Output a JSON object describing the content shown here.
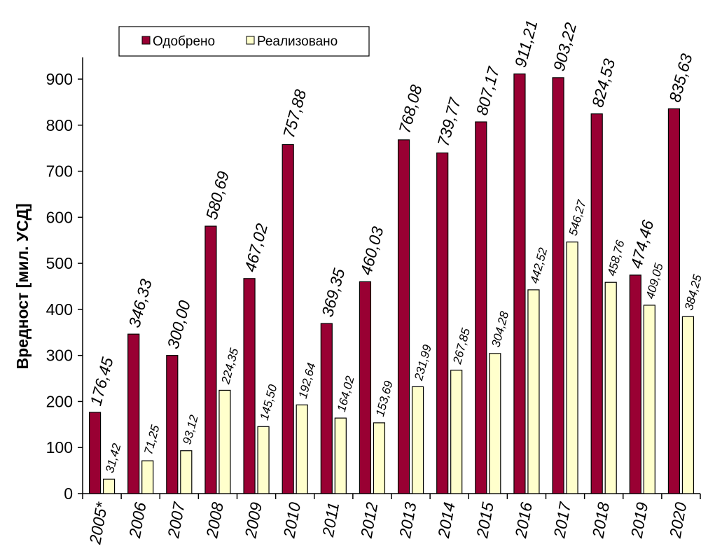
{
  "chart_data": {
    "type": "bar",
    "ylabel": "Вредност [мил. УСД]",
    "xlabel": "",
    "title": "",
    "ylim": [
      0,
      900
    ],
    "yticks": [
      "0",
      "100",
      "200",
      "300",
      "400",
      "500",
      "600",
      "700",
      "800",
      "900"
    ],
    "grid": false,
    "legend_position": "top-left",
    "categories": [
      "2005*",
      "2006",
      "2007",
      "2008",
      "2009",
      "2010",
      "2011",
      "2012",
      "2013",
      "2014",
      "2015",
      "2016",
      "2017",
      "2018",
      "2019",
      "2020"
    ],
    "series": [
      {
        "name": "Одобрено",
        "color": "#990033",
        "values": [
          176.45,
          346.33,
          300.0,
          580.69,
          467.02,
          757.88,
          369.35,
          460.03,
          768.08,
          739.77,
          807.17,
          911.21,
          903.22,
          824.53,
          474.46,
          835.63
        ],
        "labels": [
          "176,45",
          "346,33",
          "300,00",
          "580,69",
          "467,02",
          "757,88",
          "369,35",
          "460,03",
          "768,08",
          "739,77",
          "807,17",
          "911,21",
          "903,22",
          "824,53",
          "474,46",
          "835,63"
        ]
      },
      {
        "name": "Реализовано",
        "color": "#FFFFCC",
        "values": [
          31.42,
          71.25,
          93.12,
          224.35,
          145.5,
          192.64,
          164.02,
          153.69,
          231.99,
          267.85,
          304.28,
          442.52,
          546.27,
          458.76,
          409.05,
          384.25
        ],
        "labels": [
          "31,42",
          "71,25",
          "93,12",
          "224,35",
          "145,50",
          "192,64",
          "164,02",
          "153,69",
          "231,99",
          "267,85",
          "304,28",
          "442,52",
          "546,27",
          "458,76",
          "409,05",
          "384,25"
        ]
      }
    ]
  }
}
